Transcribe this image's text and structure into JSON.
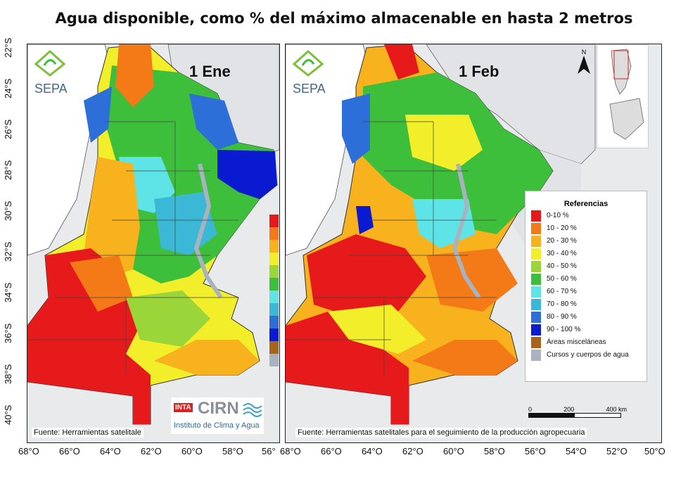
{
  "title": "Agua disponible, como % del máximo almacenable  en hasta 2 metros",
  "panels": [
    {
      "date": "1 Ene",
      "logo": "SEPA",
      "source": "Fuente:  Herramientas satelitale"
    },
    {
      "date": "1 Feb",
      "logo": "SEPA",
      "source": "Fuente: Herramientas satelitales para el seguimiento de la producción agropecuaria"
    }
  ],
  "lat_labels": [
    "22°S",
    "24°S",
    "26°S",
    "28°S",
    "30°S",
    "32°S",
    "34°S",
    "36°S",
    "38°S",
    "40°S"
  ],
  "lon_labels_left": [
    "68°O",
    "66°O",
    "64°O",
    "62°O",
    "60°O",
    "58°O",
    "56°"
  ],
  "lon_labels_right": [
    "68°O",
    "66°O",
    "64°O",
    "62°O",
    "60°O",
    "58°O",
    "56°O",
    "54°O",
    "52°O",
    "50°O"
  ],
  "legend": {
    "title": "Referencias",
    "items": [
      {
        "label": "0-10 %",
        "color": "#e6191b"
      },
      {
        "label": "10 - 20 %",
        "color": "#f47a18"
      },
      {
        "label": "20 - 30 %",
        "color": "#f7b21d"
      },
      {
        "label": "30 - 40 %",
        "color": "#f3ee2a"
      },
      {
        "label": "40 - 50 %",
        "color": "#9ad53a"
      },
      {
        "label": "50 - 60 %",
        "color": "#3ebf3c"
      },
      {
        "label": "60 - 70 %",
        "color": "#5ee3e6"
      },
      {
        "label": "70 - 80 %",
        "color": "#3bb8d6"
      },
      {
        "label": "80 - 90 %",
        "color": "#2c6fd8"
      },
      {
        "label": "90 - 100 %",
        "color": "#0a1ad0"
      },
      {
        "label": "Áreas misceláneas",
        "color": "#a8641c"
      },
      {
        "label": "Cursos y cuerpos de agua",
        "color": "#a9b3c0"
      }
    ]
  },
  "scale": {
    "labels": [
      "0",
      "200",
      "400 km"
    ]
  },
  "north": "N",
  "cirn": {
    "brand": "INTA",
    "name": "CIRN",
    "subtitle": "Instituto de Clima y Agua"
  }
}
